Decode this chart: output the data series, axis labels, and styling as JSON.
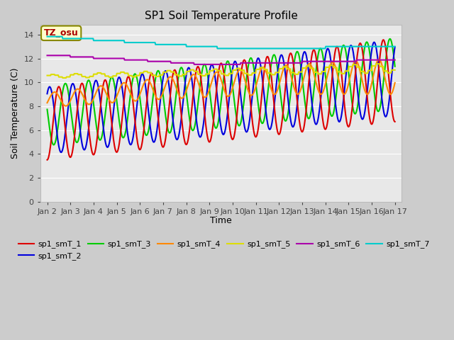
{
  "title": "SP1 Soil Temperature Profile",
  "xlabel": "Time",
  "ylabel": "Soil Temperature (C)",
  "ylim": [
    0,
    14.8
  ],
  "yticks": [
    0,
    2,
    4,
    6,
    8,
    10,
    12,
    14
  ],
  "x_tick_labels": [
    "Jan 2",
    "Jan 3",
    "Jan 4",
    "Jan 5",
    "Jan 6",
    "Jan 7",
    "Jan 8",
    "Jan 9",
    "Jan 10",
    "Jan 11",
    "Jan 12",
    "Jan 13",
    "Jan 14",
    "Jan 15",
    "Jan 16",
    "Jan 17"
  ],
  "colors": {
    "sp1_smT_1": "#dd0000",
    "sp1_smT_2": "#0000dd",
    "sp1_smT_3": "#00cc00",
    "sp1_smT_4": "#ff8800",
    "sp1_smT_5": "#dddd00",
    "sp1_smT_6": "#aa00aa",
    "sp1_smT_7": "#00cccc"
  },
  "annotation_text": "TZ_osu",
  "annotation_color": "#aa0000",
  "annotation_bg": "#ffffcc",
  "annotation_border": "#888800",
  "line_width": 1.5
}
